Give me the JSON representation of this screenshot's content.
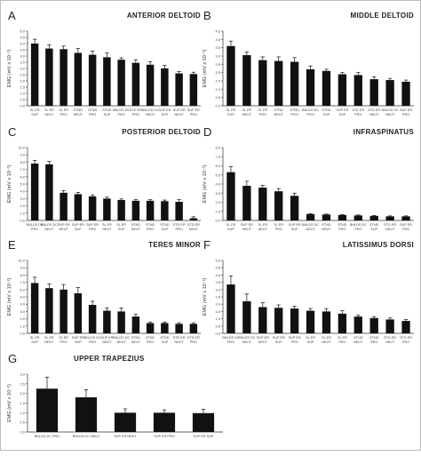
{
  "figure": {
    "ylabel": "EMG (mV x 10⁻²)"
  },
  "chart_data": [
    {
      "letter": "A",
      "title": "ANTERIOR DELTOID",
      "type": "bar",
      "yticks": [
        "0.0",
        "0.5",
        "1.0",
        "1.5",
        "2.0",
        "2.5",
        "3.0",
        "3.5",
        "4.0",
        "4.5",
        "5.0",
        "5.5",
        "6.0"
      ],
      "ylim": [
        0,
        6
      ],
      "categories": [
        [
          "SL ER",
          "SUP"
        ],
        [
          "SL ER",
          "NEUT"
        ],
        [
          "SL ER",
          "PRO"
        ],
        [
          "STND",
          "NEUT"
        ],
        [
          "STND",
          "PRO"
        ],
        [
          "STND",
          "SUP"
        ],
        [
          "BNLDS DC",
          "PRO"
        ],
        [
          "STD ER",
          "PRO"
        ],
        [
          "BNLDS DC",
          "NEUT"
        ],
        [
          "SUP ER",
          "SUP"
        ],
        [
          "SUP ER",
          "NEUT"
        ],
        [
          "SUP ER",
          "PRO"
        ]
      ],
      "values": [
        5.0,
        4.6,
        4.55,
        4.25,
        4.1,
        3.9,
        3.7,
        3.45,
        3.3,
        3.0,
        2.6,
        2.55
      ],
      "errors": [
        0.35,
        0.3,
        0.25,
        0.35,
        0.3,
        0.35,
        0.15,
        0.25,
        0.25,
        0.25,
        0.15,
        0.15
      ]
    },
    {
      "letter": "B",
      "title": "MIDDLE DELTOID",
      "type": "bar",
      "yticks": [
        "0.0",
        "0.5",
        "1.0",
        "1.5",
        "2.0",
        "2.5",
        "3.0",
        "3.5",
        "4.0",
        "4.5"
      ],
      "ylim": [
        0,
        4.5
      ],
      "categories": [
        [
          "SL ER",
          "SUP"
        ],
        [
          "SL ER",
          "NEUT"
        ],
        [
          "SL ER",
          "PRO"
        ],
        [
          "STND",
          "NEUT"
        ],
        [
          "STND",
          "PRO"
        ],
        [
          "BNLDS DC",
          "PRO"
        ],
        [
          "STND",
          "SUP"
        ],
        [
          "SUP ER",
          "SUP"
        ],
        [
          "STD ER",
          "PRO"
        ],
        [
          "STD ER",
          "NEUT"
        ],
        [
          "BNLDS DC",
          "NEUT"
        ],
        [
          "SUP ER",
          "PRO"
        ]
      ],
      "values": [
        3.6,
        3.05,
        2.75,
        2.7,
        2.65,
        2.2,
        2.1,
        1.9,
        1.85,
        1.6,
        1.55,
        1.45
      ],
      "errors": [
        0.3,
        0.2,
        0.2,
        0.25,
        0.25,
        0.2,
        0.1,
        0.1,
        0.15,
        0.15,
        0.1,
        0.1
      ]
    },
    {
      "letter": "C",
      "title": "POSTERIOR DELTOID",
      "type": "bar",
      "yticks": [
        "0.0",
        "1.0",
        "2.0",
        "3.0",
        "4.0",
        "5.0",
        "6.0",
        "7.0",
        "8.0",
        "9.0",
        "10.0"
      ],
      "ylim": [
        0,
        10
      ],
      "categories": [
        [
          "BNLDS DC",
          "PRO"
        ],
        [
          "BNLDS DC",
          "NEUT"
        ],
        [
          "SUP ER",
          "NEUT"
        ],
        [
          "SUP ER",
          "SUP"
        ],
        [
          "SUP ER",
          "PRO"
        ],
        [
          "SL ER",
          "NEUT"
        ],
        [
          "SL ER",
          "SUP"
        ],
        [
          "STND",
          "NEUT"
        ],
        [
          "STND",
          "PRO"
        ],
        [
          "STND",
          "SUP"
        ],
        [
          "STD ER",
          "PRO"
        ],
        [
          "STD ER",
          "NEUT"
        ]
      ],
      "values": [
        7.8,
        7.7,
        3.8,
        3.6,
        3.3,
        3.0,
        2.8,
        2.7,
        2.7,
        2.65,
        2.55,
        0.3
      ],
      "errors": [
        0.45,
        0.4,
        0.3,
        0.25,
        0.2,
        0.2,
        0.15,
        0.15,
        0.15,
        0.15,
        0.3,
        0.2
      ]
    },
    {
      "letter": "D",
      "title": "INFRASPINATUS",
      "type": "bar",
      "yticks": [
        "0.0",
        "1.0",
        "2.0",
        "3.0",
        "4.0",
        "5.0",
        "6.0",
        "7.0",
        "8.0"
      ],
      "ylim": [
        0,
        8
      ],
      "categories": [
        [
          "SL ER",
          "SUP"
        ],
        [
          "SUP ER",
          "NEUT"
        ],
        [
          "SL ER",
          "NEUT"
        ],
        [
          "SL ER",
          "PRO"
        ],
        [
          "SUP ER",
          "SUP"
        ],
        [
          "BNLDS DC",
          "NEUT"
        ],
        [
          "STND",
          "NEUT"
        ],
        [
          "STND",
          "PRO"
        ],
        [
          "BNLDS DC",
          "PRO"
        ],
        [
          "STND",
          "SUP"
        ],
        [
          "STD ER",
          "NEUT"
        ],
        [
          "SUP ER",
          "PRO"
        ]
      ],
      "values": [
        5.3,
        3.8,
        3.6,
        3.2,
        2.7,
        0.7,
        0.65,
        0.6,
        0.55,
        0.5,
        0.45,
        0.45
      ],
      "errors": [
        0.6,
        0.5,
        0.25,
        0.3,
        0.3,
        0.05,
        0.05,
        0.05,
        0.05,
        0.05,
        0.05,
        0.05
      ]
    },
    {
      "letter": "E",
      "title": "TERES MINOR",
      "type": "bar",
      "yticks": [
        "0.0",
        "1.0",
        "2.0",
        "3.0",
        "4.0",
        "5.0",
        "6.0",
        "7.0",
        "8.0",
        "9.0",
        "10.0"
      ],
      "ylim": [
        0,
        10
      ],
      "categories": [
        [
          "SL ER",
          "SUP"
        ],
        [
          "SL ER",
          "NEUT"
        ],
        [
          "SL ER",
          "PRO"
        ],
        [
          "SUP ER",
          "SUP"
        ],
        [
          "BNLDS DC",
          "PRO"
        ],
        [
          "SUP ER",
          "NEUT"
        ],
        [
          "BNLDS DC",
          "NEUT"
        ],
        [
          "STND",
          "NEUT"
        ],
        [
          "STND",
          "PRO"
        ],
        [
          "STND",
          "SUP"
        ],
        [
          "STD ER",
          "NEUT"
        ],
        [
          "STD ER",
          "PRO"
        ]
      ],
      "values": [
        6.9,
        6.2,
        6.0,
        5.5,
        3.9,
        3.1,
        3.0,
        2.3,
        1.4,
        1.4,
        1.3,
        1.3
      ],
      "errors": [
        0.8,
        0.6,
        0.7,
        0.8,
        0.5,
        0.4,
        0.5,
        0.3,
        0.15,
        0.15,
        0.15,
        0.15
      ]
    },
    {
      "letter": "F",
      "title": "LATISSIMUS DORSI",
      "type": "bar",
      "yticks": [
        "0.0",
        "0.5",
        "1.0",
        "1.5",
        "2.0",
        "2.5",
        "3.0",
        "3.5",
        "4.0",
        "4.5",
        "5.0"
      ],
      "ylim": [
        0,
        5
      ],
      "categories": [
        [
          "BNLDS DC",
          "PRO"
        ],
        [
          "BNLDS DC",
          "NEUT"
        ],
        [
          "SUP ER",
          "NEUT"
        ],
        [
          "SUP ER",
          "SUP"
        ],
        [
          "SUP ER",
          "PRO"
        ],
        [
          "SL ER",
          "SUP"
        ],
        [
          "SL ER",
          "NEUT"
        ],
        [
          "SL ER",
          "PRO"
        ],
        [
          "STND",
          "NEUT"
        ],
        [
          "STND",
          "PRO"
        ],
        [
          "STD ER",
          "NEUT"
        ],
        [
          "STD ER",
          "PRO"
        ]
      ],
      "values": [
        3.35,
        2.2,
        1.8,
        1.75,
        1.7,
        1.55,
        1.5,
        1.35,
        1.15,
        1.05,
        0.95,
        0.85
      ],
      "errors": [
        0.6,
        0.5,
        0.3,
        0.2,
        0.15,
        0.15,
        0.2,
        0.2,
        0.1,
        0.1,
        0.1,
        0.1
      ]
    },
    {
      "letter": "G",
      "title": "UPPER TRAPEZIUS",
      "type": "bar",
      "yticks": [
        "0.0",
        "0.5",
        "1.0",
        "1.5",
        "2.0",
        "2.5",
        "3.0"
      ],
      "ylim": [
        0,
        3
      ],
      "categories": [
        [
          "BNLDS DC PRO"
        ],
        [
          "BNLDS DC NEUT"
        ],
        [
          "SUP ER NEUT"
        ],
        [
          "SUP ER PRO"
        ],
        [
          "SUP ER SUP"
        ]
      ],
      "values": [
        2.25,
        1.8,
        1.0,
        1.0,
        0.98
      ],
      "errors": [
        0.6,
        0.4,
        0.2,
        0.15,
        0.2
      ]
    }
  ]
}
